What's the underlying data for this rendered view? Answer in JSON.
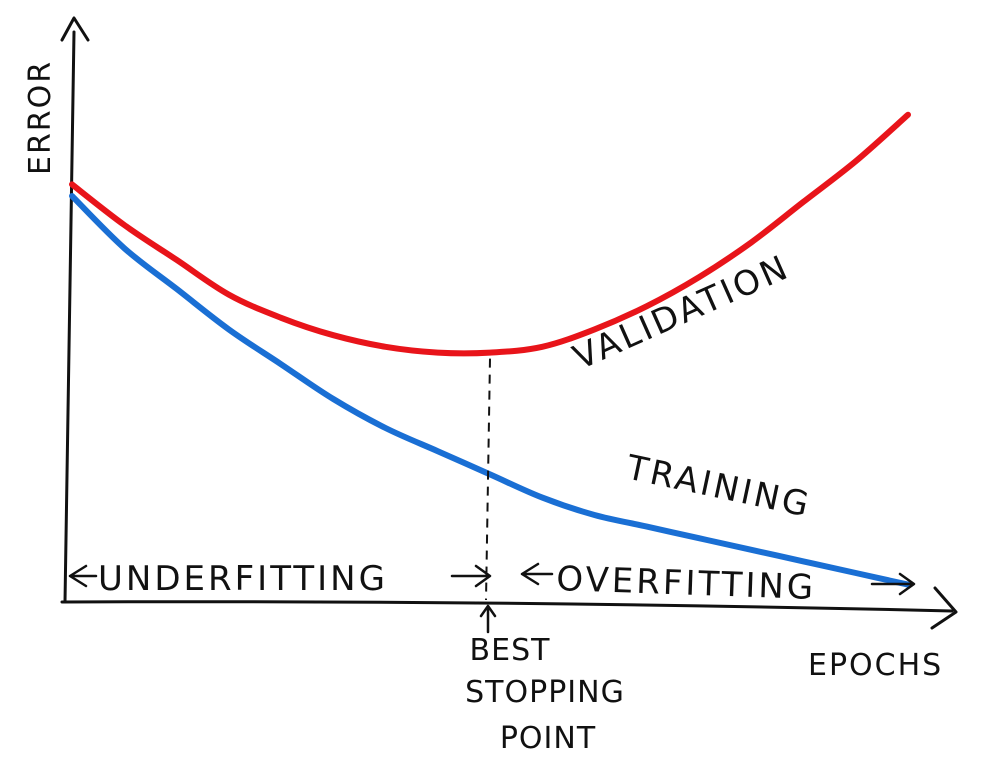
{
  "chart_data": {
    "type": "line",
    "title": "",
    "xlabel": "EPOCHS",
    "ylabel": "ERROR",
    "series": [
      {
        "name": "VALIDATION",
        "color": "#e8141a",
        "x": [
          0,
          5,
          10,
          15,
          20,
          25,
          30,
          35,
          40,
          45,
          50,
          55,
          60,
          65,
          70,
          75,
          80
        ],
        "y": [
          0.72,
          0.65,
          0.59,
          0.53,
          0.49,
          0.46,
          0.44,
          0.43,
          0.43,
          0.44,
          0.47,
          0.51,
          0.56,
          0.62,
          0.69,
          0.76,
          0.84
        ]
      },
      {
        "name": "TRAINING",
        "color": "#1a6fd4",
        "x": [
          0,
          5,
          10,
          15,
          20,
          25,
          30,
          35,
          40,
          45,
          50,
          55,
          60,
          65,
          70,
          75,
          80
        ],
        "y": [
          0.7,
          0.61,
          0.54,
          0.47,
          0.41,
          0.35,
          0.3,
          0.26,
          0.22,
          0.18,
          0.15,
          0.13,
          0.11,
          0.09,
          0.07,
          0.05,
          0.03
        ]
      }
    ],
    "best_stopping_epoch": 40,
    "xlim": [
      0,
      80
    ],
    "ylim": [
      0,
      1
    ],
    "grid": false,
    "annotations": {
      "underfitting": "UNDERFITTING",
      "overfitting": "OVERFITTING",
      "best_stopping": [
        "BEST",
        "STOPPING",
        "POINT"
      ]
    }
  }
}
